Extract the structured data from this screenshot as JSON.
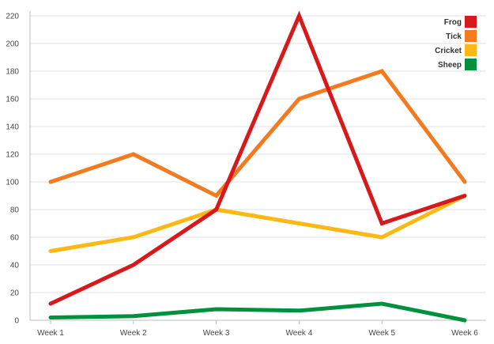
{
  "chart_data": {
    "type": "line",
    "categories": [
      "Week 1",
      "Week 2",
      "Week 3",
      "Week 4",
      "Week 5",
      "Week 6"
    ],
    "series": [
      {
        "name": "Frog",
        "color": "#d7191c",
        "values": [
          12,
          40,
          80,
          220,
          70,
          90
        ]
      },
      {
        "name": "Tick",
        "color": "#f47a20",
        "values": [
          100,
          120,
          90,
          160,
          180,
          100
        ]
      },
      {
        "name": "Cricket",
        "color": "#fdb813",
        "values": [
          50,
          60,
          80,
          70,
          60,
          90
        ]
      },
      {
        "name": "Sheep",
        "color": "#00913f",
        "values": [
          2,
          3,
          8,
          7,
          12,
          0
        ]
      }
    ],
    "ylim": [
      0,
      220
    ],
    "yticks": [
      0,
      20,
      40,
      60,
      80,
      100,
      120,
      140,
      160,
      180,
      200,
      220
    ],
    "grid": true,
    "legend": "top-right"
  }
}
